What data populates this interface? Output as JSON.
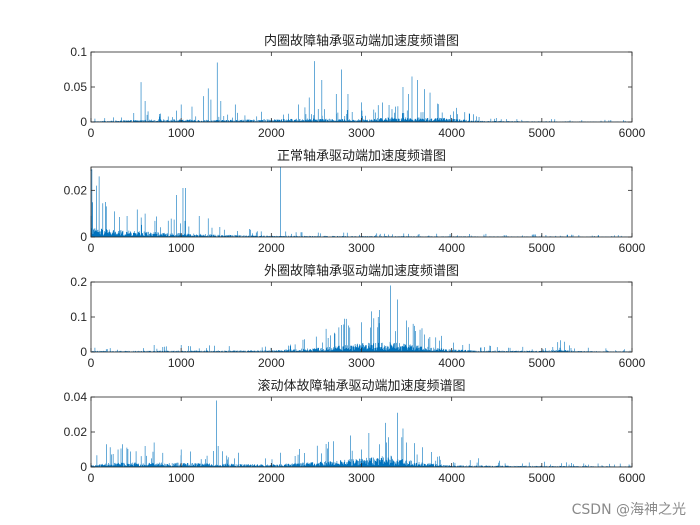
{
  "watermark": "CSDN @海神之光",
  "chart_data": [
    {
      "type": "line",
      "title": "内圈故障轴承驱动端加速度频谱图",
      "xlim": [
        0,
        6000
      ],
      "ylim": [
        0,
        0.1
      ],
      "xticks": [
        0,
        1000,
        2000,
        3000,
        4000,
        5000,
        6000
      ],
      "yticks": [
        0,
        0.05,
        0.1
      ],
      "ytick_labels": [
        "0",
        "0.05",
        "0.1"
      ],
      "color": "#0072BD",
      "noise": [
        [
          0,
          0.001
        ],
        [
          500,
          0.003
        ],
        [
          800,
          0.004
        ],
        [
          1500,
          0.003
        ],
        [
          2400,
          0.005
        ],
        [
          3000,
          0.004
        ],
        [
          3300,
          0.007
        ],
        [
          3900,
          0.006
        ],
        [
          4300,
          0.002
        ],
        [
          4800,
          0.0012
        ],
        [
          6000,
          0.0006
        ]
      ],
      "spikes": [
        [
          555,
          0.057
        ],
        [
          600,
          0.03
        ],
        [
          1000,
          0.025
        ],
        [
          1120,
          0.022
        ],
        [
          1250,
          0.037
        ],
        [
          1300,
          0.048
        ],
        [
          1330,
          0.032
        ],
        [
          1400,
          0.085
        ],
        [
          1440,
          0.03
        ],
        [
          1600,
          0.025
        ],
        [
          2300,
          0.025
        ],
        [
          2420,
          0.035
        ],
        [
          2480,
          0.087
        ],
        [
          2560,
          0.06
        ],
        [
          2720,
          0.04
        ],
        [
          2780,
          0.075
        ],
        [
          2850,
          0.04
        ],
        [
          3000,
          0.028
        ],
        [
          3460,
          0.05
        ],
        [
          3520,
          0.04
        ],
        [
          3560,
          0.065
        ],
        [
          3620,
          0.06
        ],
        [
          3700,
          0.047
        ],
        [
          3760,
          0.042
        ]
      ]
    },
    {
      "type": "line",
      "title": "正常轴承驱动端加速度频谱图",
      "xlim": [
        0,
        6000
      ],
      "ylim": [
        0,
        0.03
      ],
      "xticks": [
        0,
        1000,
        2000,
        3000,
        4000,
        5000,
        6000
      ],
      "yticks": [
        0,
        0.02
      ],
      "ytick_labels": [
        "0",
        "0.02"
      ],
      "color": "#0072BD",
      "noise": [
        [
          0,
          0.004
        ],
        [
          300,
          0.003
        ],
        [
          800,
          0.002
        ],
        [
          1300,
          0.0012
        ],
        [
          2000,
          0.0006
        ],
        [
          3000,
          0.0004
        ],
        [
          6000,
          0.0002
        ]
      ],
      "spikes": [
        [
          10,
          0.029
        ],
        [
          60,
          0.022
        ],
        [
          90,
          0.026
        ],
        [
          160,
          0.015
        ],
        [
          260,
          0.011
        ],
        [
          400,
          0.009
        ],
        [
          600,
          0.01
        ],
        [
          950,
          0.018
        ],
        [
          1020,
          0.021
        ],
        [
          1050,
          0.021
        ],
        [
          1200,
          0.009
        ],
        [
          1300,
          0.008
        ],
        [
          2100,
          0.031
        ]
      ]
    },
    {
      "type": "line",
      "title": "外圈故障轴承驱动端加速度频谱图",
      "xlim": [
        0,
        6000
      ],
      "ylim": [
        0,
        0.2
      ],
      "xticks": [
        0,
        1000,
        2000,
        3000,
        4000,
        5000,
        6000
      ],
      "yticks": [
        0,
        0.1,
        0.2
      ],
      "ytick_labels": [
        "0",
        "0.1",
        "0.2"
      ],
      "color": "#0072BD",
      "noise": [
        [
          0,
          0.003
        ],
        [
          1000,
          0.004
        ],
        [
          2000,
          0.005
        ],
        [
          2500,
          0.012
        ],
        [
          2800,
          0.02
        ],
        [
          3000,
          0.025
        ],
        [
          3300,
          0.03
        ],
        [
          3600,
          0.02
        ],
        [
          3900,
          0.01
        ],
        [
          4300,
          0.004
        ],
        [
          5000,
          0.004
        ],
        [
          5200,
          0.008
        ],
        [
          5400,
          0.003
        ],
        [
          6000,
          0.002
        ]
      ],
      "spikes": [
        [
          700,
          0.02
        ],
        [
          1000,
          0.02
        ],
        [
          2630,
          0.04
        ],
        [
          2700,
          0.055
        ],
        [
          2810,
          0.095
        ],
        [
          2870,
          0.07
        ],
        [
          3000,
          0.085
        ],
        [
          3100,
          0.07
        ],
        [
          3200,
          0.12
        ],
        [
          3320,
          0.19
        ],
        [
          3400,
          0.15
        ],
        [
          3500,
          0.09
        ],
        [
          3600,
          0.06
        ],
        [
          3700,
          0.05
        ],
        [
          5200,
          0.012
        ]
      ]
    },
    {
      "type": "line",
      "title": "滚动体故障轴承驱动端加速度频谱图",
      "xlim": [
        0,
        6000
      ],
      "ylim": [
        0,
        0.04
      ],
      "xticks": [
        0,
        1000,
        2000,
        3000,
        4000,
        5000,
        6000
      ],
      "yticks": [
        0,
        0.02,
        0.04
      ],
      "ytick_labels": [
        "0",
        "0.02",
        "0.04"
      ],
      "color": "#0072BD",
      "noise": [
        [
          0,
          0.001
        ],
        [
          200,
          0.0025
        ],
        [
          1000,
          0.0025
        ],
        [
          1500,
          0.002
        ],
        [
          2000,
          0.0015
        ],
        [
          2500,
          0.003
        ],
        [
          3000,
          0.005
        ],
        [
          3300,
          0.007
        ],
        [
          3600,
          0.003
        ],
        [
          4000,
          0.001
        ],
        [
          6000,
          0.0004
        ]
      ],
      "spikes": [
        [
          170,
          0.013
        ],
        [
          300,
          0.01
        ],
        [
          350,
          0.013
        ],
        [
          500,
          0.009
        ],
        [
          600,
          0.012
        ],
        [
          700,
          0.014
        ],
        [
          1000,
          0.01
        ],
        [
          1390,
          0.038
        ],
        [
          1410,
          0.012
        ],
        [
          1460,
          0.009
        ],
        [
          3000,
          0.01
        ],
        [
          3200,
          0.013
        ],
        [
          3300,
          0.017
        ],
        [
          3400,
          0.031
        ],
        [
          3460,
          0.022
        ],
        [
          3500,
          0.014
        ],
        [
          4300,
          0.005
        ]
      ]
    }
  ]
}
